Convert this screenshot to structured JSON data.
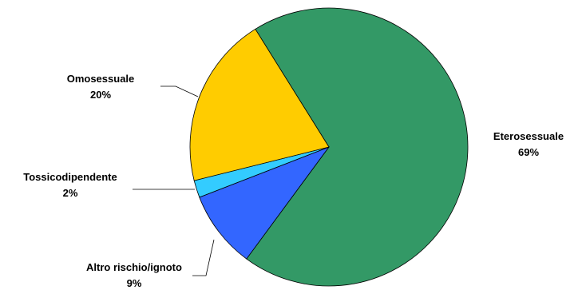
{
  "chart_data": {
    "type": "pie",
    "title": "",
    "slices": [
      {
        "label": "Eterosessuale",
        "value": 69,
        "value_label": "69%",
        "color": "#339966"
      },
      {
        "label": "Altro rischio/ignoto",
        "value": 9,
        "value_label": "9%",
        "color": "#3366FF"
      },
      {
        "label": "Tossicodipendente",
        "value": 2,
        "value_label": "2%",
        "color": "#33CCFF"
      },
      {
        "label": "Omosessuale",
        "value": 20,
        "value_label": "20%",
        "color": "#FFCC00"
      }
    ],
    "legend": "none",
    "slice_border_color": "#000000"
  }
}
